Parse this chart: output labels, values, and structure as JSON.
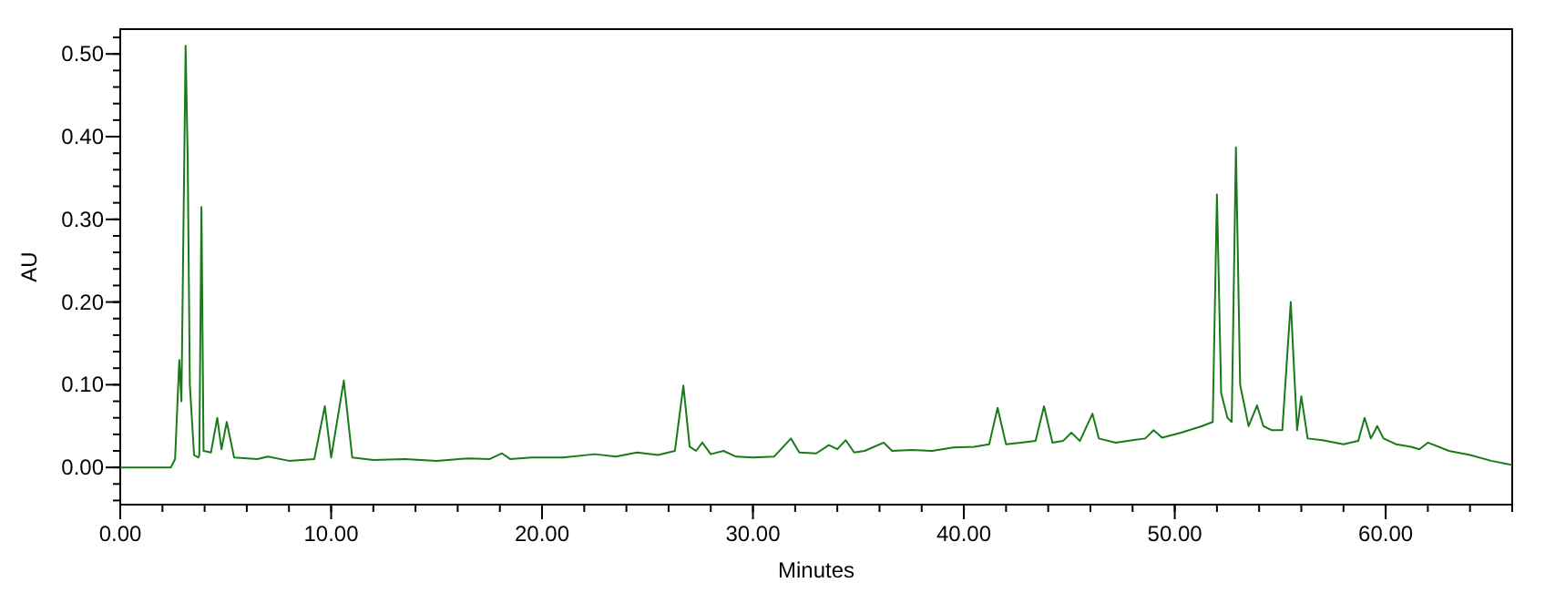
{
  "chart_data": {
    "type": "line",
    "xlabel": "Minutes",
    "ylabel": "AU",
    "xlim": [
      0,
      66
    ],
    "xticks": [
      {
        "value": 0,
        "label": "0.00"
      },
      {
        "value": 10,
        "label": "10.00"
      },
      {
        "value": 20,
        "label": "20.00"
      },
      {
        "value": 30,
        "label": "30.00"
      },
      {
        "value": 40,
        "label": "40.00"
      },
      {
        "value": 50,
        "label": "50.00"
      },
      {
        "value": 60,
        "label": "60.00"
      }
    ],
    "ylim": [
      -0.045,
      0.53
    ],
    "yticks": [
      {
        "value": 0,
        "label": "0.00"
      },
      {
        "value": 0.1,
        "label": "0.10"
      },
      {
        "value": 0.2,
        "label": "0.20"
      },
      {
        "value": 0.3,
        "label": "0.30"
      },
      {
        "value": 0.4,
        "label": "0.40"
      },
      {
        "value": 0.5,
        "label": "0.50"
      }
    ],
    "grid": false,
    "marker": "none",
    "line_style": "solid",
    "series": [
      {
        "color": "#1a7a1a",
        "x": [
          0,
          2.4,
          2.6,
          2.8,
          2.9,
          3.1,
          3.2,
          3.3,
          3.5,
          3.7,
          3.75,
          3.85,
          3.95,
          4.3,
          4.6,
          4.8,
          5.05,
          5.4,
          6.5,
          7.0,
          8.0,
          9.2,
          9.7,
          10.0,
          10.6,
          11.0,
          12.0,
          13.5,
          15.0,
          16.5,
          17.5,
          18.1,
          18.5,
          19.5,
          21,
          22.5,
          23.5,
          24.5,
          25.5,
          26.3,
          26.7,
          27.0,
          27.3,
          27.6,
          28.0,
          28.6,
          29.2,
          30,
          31,
          31.8,
          32.2,
          33,
          33.6,
          34.0,
          34.4,
          34.8,
          35.3,
          36.2,
          36.6,
          37.5,
          38.5,
          39.5,
          40.5,
          41.2,
          41.6,
          42.0,
          42.7,
          43.4,
          43.8,
          44.2,
          44.7,
          45.1,
          45.5,
          46.1,
          46.4,
          47.2,
          48.0,
          48.6,
          49.0,
          49.4,
          50.3,
          51.3,
          51.8,
          52.0,
          52.2,
          52.5,
          52.7,
          52.9,
          53.1,
          53.5,
          53.9,
          54.2,
          54.6,
          55.1,
          55.5,
          55.8,
          56.0,
          56.3,
          57,
          58,
          58.7,
          59.0,
          59.3,
          59.6,
          59.9,
          60.5,
          61.2,
          61.6,
          62,
          63,
          64,
          65,
          66
        ],
        "values": [
          0,
          0,
          0.01,
          0.13,
          0.08,
          0.51,
          0.37,
          0.1,
          0.015,
          0.012,
          0.015,
          0.315,
          0.02,
          0.018,
          0.06,
          0.022,
          0.055,
          0.012,
          0.01,
          0.013,
          0.008,
          0.01,
          0.074,
          0.012,
          0.105,
          0.012,
          0.009,
          0.01,
          0.008,
          0.011,
          0.01,
          0.017,
          0.01,
          0.012,
          0.012,
          0.016,
          0.013,
          0.018,
          0.015,
          0.02,
          0.099,
          0.025,
          0.02,
          0.03,
          0.016,
          0.02,
          0.013,
          0.012,
          0.013,
          0.035,
          0.018,
          0.017,
          0.027,
          0.022,
          0.033,
          0.018,
          0.02,
          0.03,
          0.02,
          0.021,
          0.02,
          0.024,
          0.025,
          0.028,
          0.072,
          0.028,
          0.03,
          0.032,
          0.074,
          0.03,
          0.032,
          0.042,
          0.032,
          0.065,
          0.035,
          0.03,
          0.033,
          0.035,
          0.045,
          0.036,
          0.042,
          0.05,
          0.055,
          0.33,
          0.09,
          0.06,
          0.055,
          0.387,
          0.1,
          0.05,
          0.075,
          0.05,
          0.045,
          0.045,
          0.2,
          0.045,
          0.086,
          0.035,
          0.033,
          0.028,
          0.032,
          0.06,
          0.035,
          0.05,
          0.035,
          0.028,
          0.025,
          0.022,
          0.03,
          0.02,
          0.015,
          0.008,
          0.003
        ]
      }
    ]
  }
}
